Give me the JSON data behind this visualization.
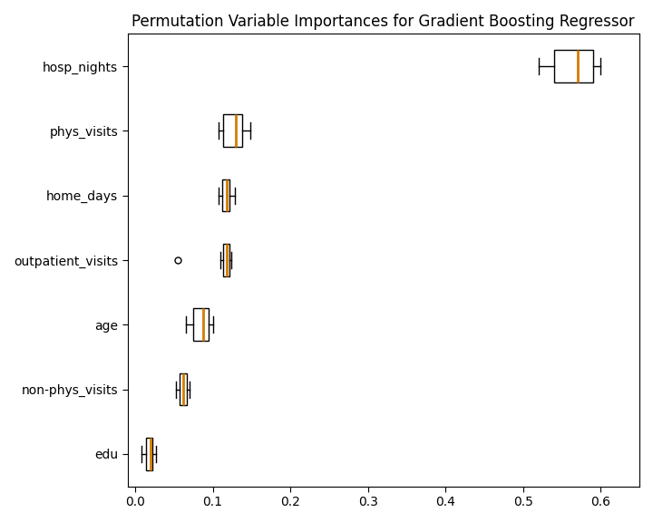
{
  "title": "Permutation Variable Importances for Gradient Boosting Regressor",
  "features_top_to_bottom": [
    "hosp_nights",
    "phys_visits",
    "home_days",
    "outpatient_visits",
    "age",
    "non-phys_visits",
    "edu"
  ],
  "boxplot_data": {
    "hosp_nights": {
      "whislo": 0.52,
      "q1": 0.54,
      "med": 0.57,
      "q3": 0.59,
      "whishi": 0.6,
      "fliers": []
    },
    "phys_visits": {
      "whislo": 0.108,
      "q1": 0.113,
      "med": 0.13,
      "q3": 0.138,
      "whishi": 0.148,
      "fliers": []
    },
    "home_days": {
      "whislo": 0.107,
      "q1": 0.112,
      "med": 0.118,
      "q3": 0.122,
      "whishi": 0.128,
      "fliers": []
    },
    "outpatient_visits": {
      "whislo": 0.11,
      "q1": 0.113,
      "med": 0.118,
      "q3": 0.121,
      "whishi": 0.124,
      "fliers": [
        0.055
      ]
    },
    "age": {
      "whislo": 0.065,
      "q1": 0.075,
      "med": 0.088,
      "q3": 0.095,
      "whishi": 0.1,
      "fliers": []
    },
    "non-phys_visits": {
      "whislo": 0.052,
      "q1": 0.057,
      "med": 0.062,
      "q3": 0.066,
      "whishi": 0.07,
      "fliers": []
    },
    "edu": {
      "whislo": 0.008,
      "q1": 0.014,
      "med": 0.02,
      "q3": 0.022,
      "whishi": 0.027,
      "fliers": []
    }
  },
  "median_color": "#d47c00",
  "box_facecolor": "white",
  "box_edge_color": "black",
  "whisker_color": "black",
  "cap_color": "black",
  "flier_marker": "o",
  "flier_facecolor": "white",
  "flier_edgecolor": "black",
  "flier_size": 5,
  "xlim": [
    -0.01,
    0.65
  ],
  "xticks": [
    0.0,
    0.1,
    0.2,
    0.3,
    0.4,
    0.5,
    0.6
  ],
  "background_color": "white",
  "title_fontsize": 12,
  "box_width": 0.5
}
